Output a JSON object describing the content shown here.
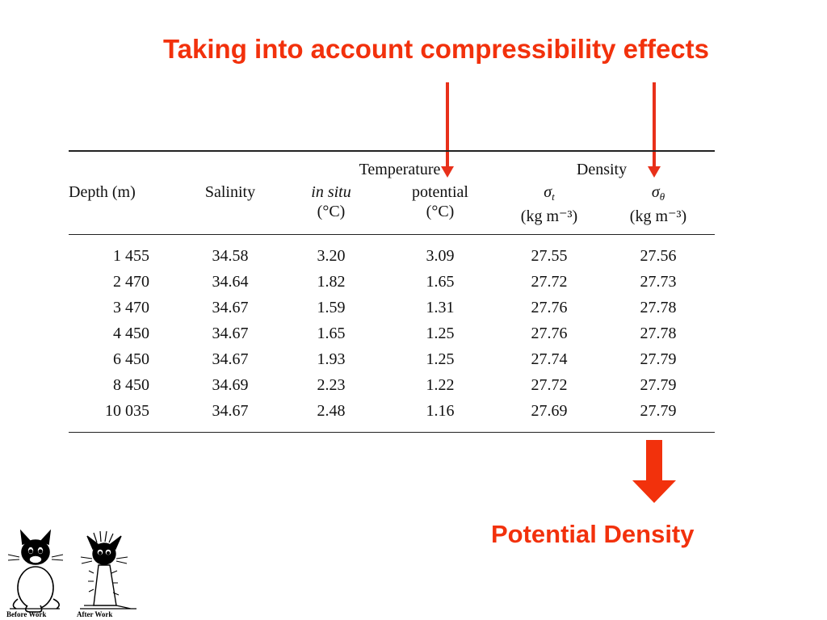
{
  "headline": "Taking into account compressibility effects",
  "table": {
    "group_headers": {
      "temperature": "Temperature",
      "density": "Density"
    },
    "columns": {
      "depth": "Depth (m)",
      "salinity": "Salinity",
      "in_situ": "in situ",
      "in_situ_unit": "(°C)",
      "potential": "potential",
      "potential_unit": "(°C)",
      "sigma_t_symbol": "σ",
      "sigma_t_sub": "t",
      "sigma_t_unit": "(kg m⁻³)",
      "sigma_theta_symbol": "σ",
      "sigma_theta_sub": "θ",
      "sigma_theta_unit": "(kg m⁻³)"
    },
    "rows": [
      [
        "1 455",
        "34.58",
        "3.20",
        "3.09",
        "27.55",
        "27.56"
      ],
      [
        "2 470",
        "34.64",
        "1.82",
        "1.65",
        "27.72",
        "27.73"
      ],
      [
        "3 470",
        "34.67",
        "1.59",
        "1.31",
        "27.76",
        "27.78"
      ],
      [
        "4 450",
        "34.67",
        "1.65",
        "1.25",
        "27.76",
        "27.78"
      ],
      [
        "6 450",
        "34.67",
        "1.93",
        "1.25",
        "27.74",
        "27.79"
      ],
      [
        "8 450",
        "34.69",
        "2.23",
        "1.22",
        "27.72",
        "27.79"
      ],
      [
        "10 035",
        "34.67",
        "2.48",
        "1.16",
        "27.69",
        "27.79"
      ]
    ]
  },
  "conclusion": "Potential Density",
  "cartoon": {
    "before_caption": "Before Work",
    "after_caption": "After Work"
  },
  "colors": {
    "accent": "#f2310c",
    "arrow": "#e8301a"
  }
}
